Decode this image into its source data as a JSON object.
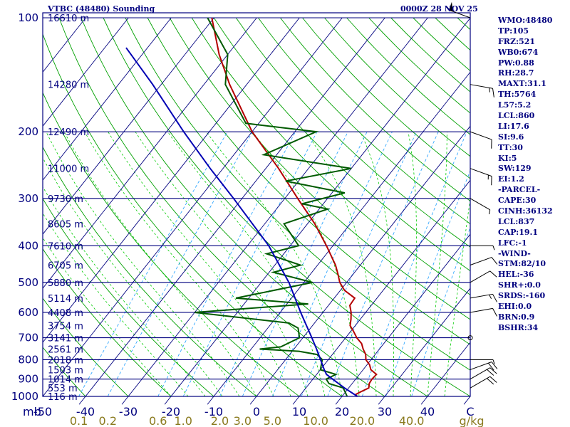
{
  "header": {
    "station": "VTBC (48480) Sounding",
    "time": "0000Z 28 NOV 25"
  },
  "indices": [
    "WMO:48480",
    "TP:105",
    "FRZ:521",
    "WB0:674",
    "PW:0.88",
    "RH:28.7",
    "MAXT:31.1",
    "TH:5764",
    "L57:5.2",
    "LCL:860",
    "LI:17.6",
    "SI:9.6",
    "TT:30",
    "KI:5",
    "SW:129",
    "EI:1.2",
    "-PARCEL-",
    "CAPE:30",
    "CINH:36132",
    "LCL:837",
    "CAP:19.1",
    "LFC:-1",
    "-WIND-",
    "STM:82/10",
    "HEL:-36",
    "SHR+:0.0",
    "SRDS:-160",
    "EHI:0.0",
    "BRN:0.9",
    "BSHR:34"
  ],
  "colors": {
    "text": "#00007f",
    "isobar": "#00007f",
    "isotherm": "#00007f",
    "dry_adiabat": "#00a000",
    "moist_adiabat": "#00cc00",
    "mixing_ratio": "#1e9fff",
    "temperature": "#b40000",
    "dewpoint": "#005a00",
    "parcel": "#0000b4",
    "background": "#ffffff"
  },
  "chart_data": {
    "type": "line",
    "title": "VTBC (48480) Sounding",
    "x_units_label": "C",
    "y_units_label": "mb",
    "mixing_ratio_units": "g/kg",
    "ylim": [
      1000,
      100
    ],
    "y_scale": "log",
    "xlim": [
      -50,
      50
    ],
    "grid": true,
    "pressure_ticks": [
      100,
      200,
      300,
      400,
      500,
      600,
      700,
      800,
      900,
      1000
    ],
    "temperature_ticks": [
      -50,
      -40,
      -30,
      -20,
      -10,
      0,
      10,
      20,
      30,
      40
    ],
    "mixing_ratio_ticks": [
      "0.1",
      "0.2",
      "0.6",
      "1.0",
      "2.0",
      "3.0",
      "5.0",
      "10.0",
      "20.0",
      "40.0"
    ],
    "height_labels": [
      {
        "p": 100,
        "label": "16610 m"
      },
      {
        "p": 150,
        "label": "14280 m"
      },
      {
        "p": 200,
        "label": "12490 m"
      },
      {
        "p": 250,
        "label": "11000 m"
      },
      {
        "p": 300,
        "label": "9730 m"
      },
      {
        "p": 350,
        "label": "8605 m"
      },
      {
        "p": 400,
        "label": "7610 m"
      },
      {
        "p": 450,
        "label": "6705 m"
      },
      {
        "p": 500,
        "label": "5880 m"
      },
      {
        "p": 550,
        "label": "5114 m"
      },
      {
        "p": 600,
        "label": "4408 m"
      },
      {
        "p": 650,
        "label": "3754 m"
      },
      {
        "p": 700,
        "label": "3141 m"
      },
      {
        "p": 750,
        "label": "2561 m"
      },
      {
        "p": 800,
        "label": "2018 m"
      },
      {
        "p": 850,
        "label": "1503 m"
      },
      {
        "p": 900,
        "label": "1014 m"
      },
      {
        "p": 950,
        "label": "553 m"
      },
      {
        "p": 1000,
        "label": "116 m"
      }
    ],
    "series": [
      {
        "key": "temperature",
        "points": [
          {
            "p": 1000,
            "t": 23.6
          },
          {
            "p": 990,
            "t": 22.8
          },
          {
            "p": 975,
            "t": 23.4
          },
          {
            "p": 950,
            "t": 24.7
          },
          {
            "p": 925,
            "t": 24.0
          },
          {
            "p": 900,
            "t": 23.8
          },
          {
            "p": 875,
            "t": 24.0
          },
          {
            "p": 850,
            "t": 21.8
          },
          {
            "p": 825,
            "t": 20.6
          },
          {
            "p": 800,
            "t": 18.8
          },
          {
            "p": 775,
            "t": 17.8
          },
          {
            "p": 750,
            "t": 16.2
          },
          {
            "p": 725,
            "t": 14.8
          },
          {
            "p": 700,
            "t": 12.6
          },
          {
            "p": 675,
            "t": 10.8
          },
          {
            "p": 650,
            "t": 8.8
          },
          {
            "p": 625,
            "t": 7.8
          },
          {
            "p": 600,
            "t": 6.6
          },
          {
            "p": 575,
            "t": 5.0
          },
          {
            "p": 550,
            "t": 4.8
          },
          {
            "p": 525,
            "t": 1.0
          },
          {
            "p": 500,
            "t": -1.6
          },
          {
            "p": 475,
            "t": -3.6
          },
          {
            "p": 450,
            "t": -5.8
          },
          {
            "p": 400,
            "t": -11.5
          },
          {
            "p": 350,
            "t": -18.3
          },
          {
            "p": 300,
            "t": -27.0
          },
          {
            "p": 250,
            "t": -37.0
          },
          {
            "p": 200,
            "t": -50.0
          },
          {
            "p": 150,
            "t": -64.0
          },
          {
            "p": 125,
            "t": -72.0
          },
          {
            "p": 100,
            "t": -80.5
          }
        ]
      },
      {
        "key": "dewpoint",
        "points": [
          {
            "p": 1000,
            "t": 21.2
          },
          {
            "p": 975,
            "t": 20.0
          },
          {
            "p": 950,
            "t": 18.7
          },
          {
            "p": 925,
            "t": 14.6
          },
          {
            "p": 900,
            "t": 13.1
          },
          {
            "p": 875,
            "t": 14.5
          },
          {
            "p": 850,
            "t": 10.0
          },
          {
            "p": 800,
            "t": 8.6
          },
          {
            "p": 775,
            "t": 6.4
          },
          {
            "p": 760,
            "t": 1.6
          },
          {
            "p": 750,
            "t": -8.0
          },
          {
            "p": 740,
            "t": -3.5
          },
          {
            "p": 700,
            "t": -0.8
          },
          {
            "p": 660,
            "t": -2.9
          },
          {
            "p": 640,
            "t": -6.0
          },
          {
            "p": 600,
            "t": -30.0
          },
          {
            "p": 570,
            "t": -5.0
          },
          {
            "p": 550,
            "t": -23.0
          },
          {
            "p": 500,
            "t": -8.0
          },
          {
            "p": 470,
            "t": -19.0
          },
          {
            "p": 450,
            "t": -14.0
          },
          {
            "p": 420,
            "t": -24.0
          },
          {
            "p": 400,
            "t": -18.0
          },
          {
            "p": 350,
            "t": -25.5
          },
          {
            "p": 320,
            "t": -18.0
          },
          {
            "p": 310,
            "t": -25.0
          },
          {
            "p": 290,
            "t": -17.0
          },
          {
            "p": 270,
            "t": -33.0
          },
          {
            "p": 250,
            "t": -20.0
          },
          {
            "p": 230,
            "t": -43.0
          },
          {
            "p": 200,
            "t": -35.0
          },
          {
            "p": 190,
            "t": -53.0
          },
          {
            "p": 150,
            "t": -65.0
          },
          {
            "p": 125,
            "t": -70.0
          },
          {
            "p": 100,
            "t": -81.5
          }
        ]
      },
      {
        "key": "parcel",
        "points": [
          {
            "p": 1000,
            "t": 23.6
          },
          {
            "p": 950,
            "t": 19.0
          },
          {
            "p": 900,
            "t": 14.6
          },
          {
            "p": 875,
            "t": 12.3
          },
          {
            "p": 850,
            "t": 10.9
          },
          {
            "p": 800,
            "t": 8.2
          },
          {
            "p": 750,
            "t": 5.3
          },
          {
            "p": 700,
            "t": 2.1
          },
          {
            "p": 600,
            "t": -5.2
          },
          {
            "p": 500,
            "t": -13.5
          },
          {
            "p": 400,
            "t": -25.0
          },
          {
            "p": 300,
            "t": -42.0
          },
          {
            "p": 250,
            "t": -53.0
          },
          {
            "p": 200,
            "t": -66.0
          },
          {
            "p": 150,
            "t": -82.0
          },
          {
            "p": 120,
            "t": -95.0
          }
        ]
      }
    ],
    "wind_barbs": [
      {
        "p": 100,
        "dir": 290,
        "spd": 50
      },
      {
        "p": 150,
        "dir": 100,
        "spd": 15
      },
      {
        "p": 200,
        "dir": 110,
        "spd": 10
      },
      {
        "p": 250,
        "dir": 110,
        "spd": 15
      },
      {
        "p": 300,
        "dir": 120,
        "spd": 5
      },
      {
        "p": 400,
        "dir": 90,
        "spd": 5
      },
      {
        "p": 450,
        "dir": 70,
        "spd": 10
      },
      {
        "p": 500,
        "dir": 60,
        "spd": 10
      },
      {
        "p": 550,
        "dir": 80,
        "spd": 15
      },
      {
        "p": 600,
        "dir": 80,
        "spd": 10
      },
      {
        "p": 700,
        "dir": 360,
        "spd": 0
      },
      {
        "p": 800,
        "dir": 90,
        "spd": 5
      },
      {
        "p": 850,
        "dir": 70,
        "spd": 20
      },
      {
        "p": 900,
        "dir": 60,
        "spd": 20
      },
      {
        "p": 950,
        "dir": 60,
        "spd": 20
      }
    ]
  }
}
